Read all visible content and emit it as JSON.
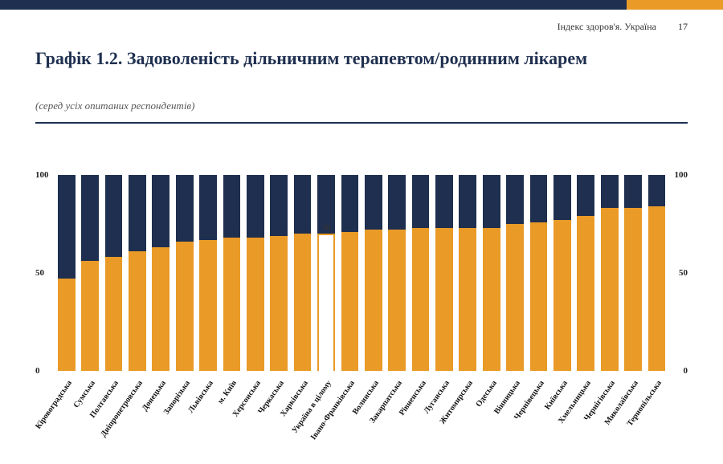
{
  "colors": {
    "navy": "#1e2f4f",
    "orange": "#e99a27",
    "background": "#ffffff",
    "text_dark": "#111111",
    "rule": "#1e2f4f"
  },
  "header": {
    "index_label": "Індекс здоров'я. Україна",
    "page_number": "17"
  },
  "title": {
    "text": "Графік 1.2. Задоволеність дільничним терапевтом/родинним лікарем",
    "fontsize": 22
  },
  "subtitle": {
    "text": "(серед усіх опитаних респондентів)",
    "fontsize": 13
  },
  "chart": {
    "type": "stacked-bar",
    "ylim": [
      0,
      100
    ],
    "yticks": [
      0,
      50,
      100
    ],
    "total_height": 100,
    "bar_color_bottom": "#e99a27",
    "bar_color_top": "#1e2f4f",
    "value_label_color": "#1e2f4f",
    "value_label_fontsize": 10,
    "xlabel_fontsize": 10,
    "xlabel_rotation_deg": -55,
    "highlight_index": 12,
    "categories": [
      "Кіровоградська",
      "Сумська",
      "Полтавська",
      "Дніпропетровська",
      "Донецька",
      "Запорізька",
      "Львівська",
      "м. Київ",
      "Херсонська",
      "Черкаська",
      "Харківська",
      "Україна в цілому",
      "Івано-Франківська",
      "Волинська",
      "Закарпатська",
      "Рівненська",
      "Луганська",
      "Житомирська",
      "Одеська",
      "Вінницька",
      "Чернівецька",
      "Київська",
      "Хмельницька",
      "Чернігівська",
      "Миколаївська",
      "Тернопільська"
    ],
    "values": [
      47,
      56,
      58,
      61,
      63,
      66,
      67,
      68,
      68,
      69,
      70,
      70,
      71,
      72,
      72,
      73,
      73,
      73,
      73,
      75,
      76,
      77,
      79,
      83,
      83,
      84
    ]
  }
}
